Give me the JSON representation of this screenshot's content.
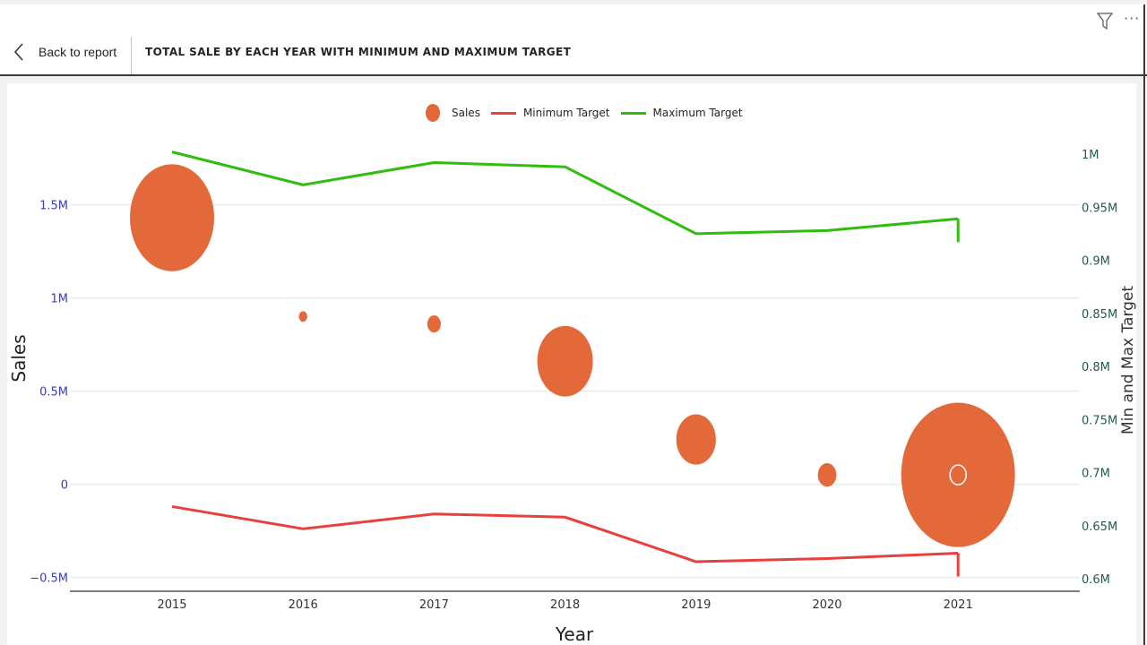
{
  "header": {
    "back_label": "Back to report",
    "title": "TOTAL SALE BY EACH YEAR WITH MINIMUM AND MAXIMUM TARGET"
  },
  "icons": {
    "back": "chevron-left-icon",
    "filter": "filter-icon",
    "more": "more-options-icon"
  },
  "colors": {
    "sales": "#e4693a",
    "min_target": "#e8403c",
    "max_target": "#2fbe0e",
    "left_axis_text": "#3c3cb4",
    "right_axis_text": "#1e5b4f"
  },
  "chart_data": {
    "type": "scatter",
    "title": "",
    "xlabel": "Year",
    "ylabel": "Sales",
    "y2label": "Min and Max Target",
    "legend_position": "top-center",
    "grid": true,
    "categories": [
      "2015",
      "2016",
      "2017",
      "2018",
      "2019",
      "2020",
      "2021"
    ],
    "ylim": [
      -0.5,
      1.5
    ],
    "y_ticks": [
      -0.5,
      0,
      0.5,
      1,
      1.5
    ],
    "y_tick_labels": [
      "−0.5M",
      "0",
      "0.5M",
      "1M",
      "1.5M"
    ],
    "y2lim": [
      0.6,
      1.0
    ],
    "y2_ticks": [
      0.6,
      0.65,
      0.7,
      0.75,
      0.8,
      0.85,
      0.9,
      0.95,
      1.0
    ],
    "y2_tick_labels": [
      "0.6M",
      "0.65M",
      "0.7M",
      "0.75M",
      "0.8M",
      "0.85M",
      "0.9M",
      "0.95M",
      "1M"
    ],
    "series": [
      {
        "name": "Sales",
        "axis": "left",
        "kind": "bubble",
        "values": [
          1.43,
          0.9,
          0.86,
          0.66,
          0.24,
          0.05,
          0.05
        ],
        "sizes": [
          1.0,
          0.1,
          0.16,
          0.66,
          0.47,
          0.22,
          1.35
        ]
      },
      {
        "name": "Minimum Target",
        "axis": "right",
        "kind": "line",
        "values": [
          0.668,
          0.647,
          0.661,
          0.658,
          0.616,
          0.619,
          0.624
        ]
      },
      {
        "name": "Maximum Target",
        "axis": "right",
        "kind": "line",
        "values": [
          1.002,
          0.971,
          0.992,
          0.988,
          0.925,
          0.928,
          0.939
        ]
      }
    ]
  }
}
